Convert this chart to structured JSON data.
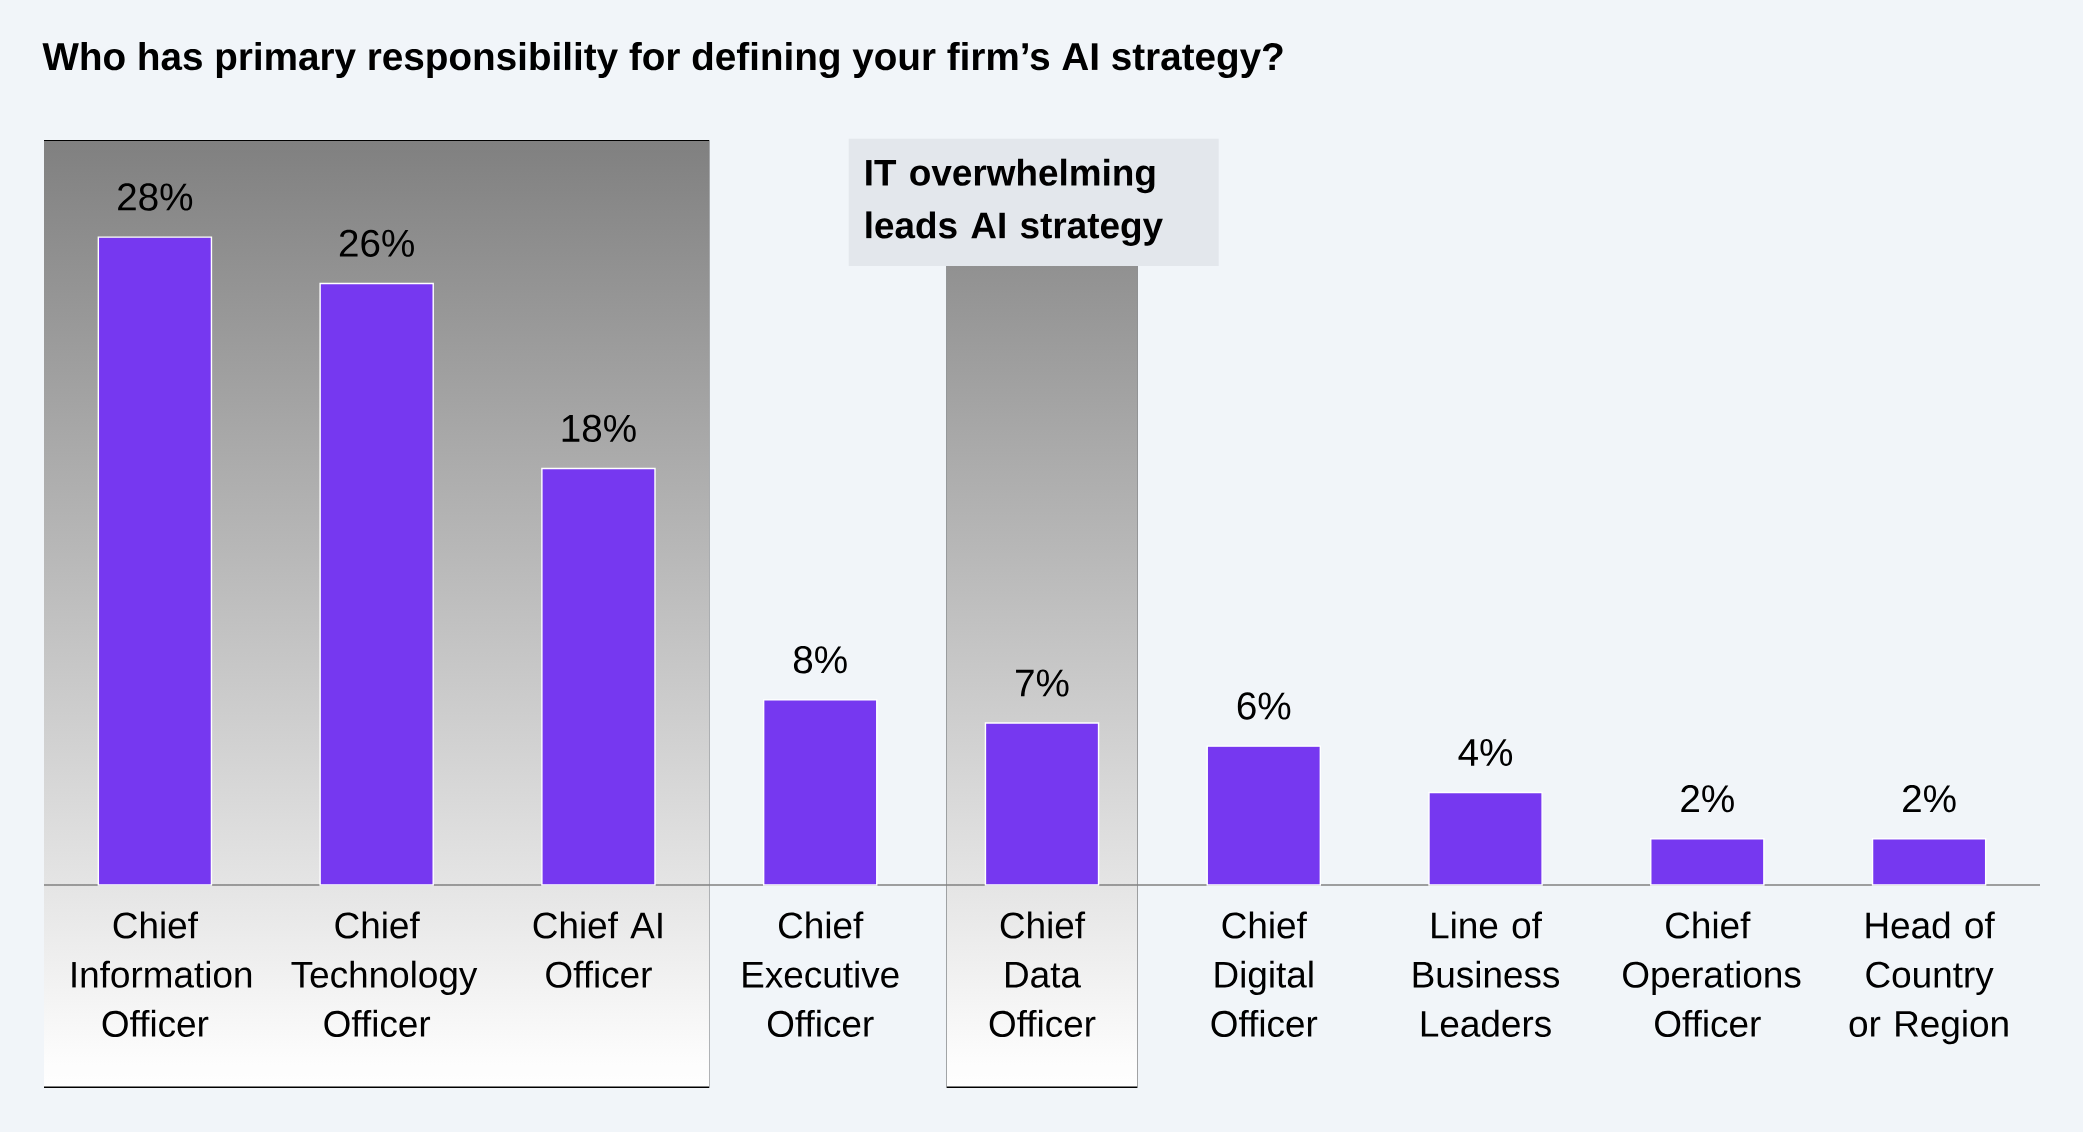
{
  "chart_data": {
    "type": "bar",
    "title": "Who has primary responsibility for defining your firm’s AI strategy?",
    "categories": [
      "Chief Information Officer",
      "Chief Technology Officer",
      "Chief AI Officer",
      "Chief Executive Officer",
      "Chief Data Officer",
      "Chief Digital Officer",
      "Line of Business Leaders",
      "Chief Operations Officer",
      "Head of Country or Region"
    ],
    "values": [
      28,
      26,
      18,
      8,
      7,
      6,
      4,
      2,
      2
    ],
    "value_labels": [
      "28%",
      "26%",
      "18%",
      "8%",
      "7%",
      "6%",
      "4%",
      "2%",
      "2%"
    ],
    "color": "#7638f0",
    "annotations": [
      "IT overwhelming leads AI strategy"
    ]
  }
}
